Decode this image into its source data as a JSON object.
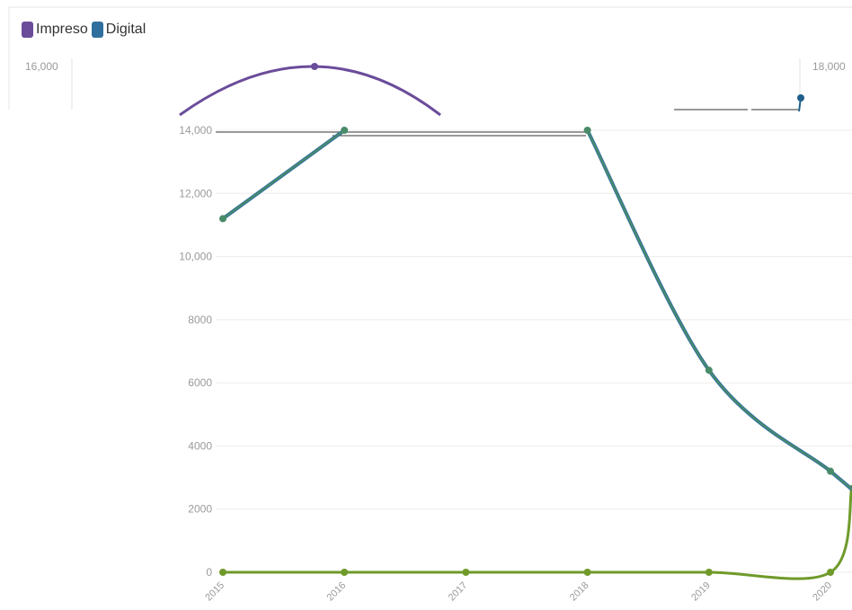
{
  "legend": {
    "items": [
      {
        "label": "Impreso",
        "color": "#6b4c9a"
      },
      {
        "label": "Digital",
        "color": "#2e6f9e"
      }
    ]
  },
  "chart_data": [
    {
      "type": "line",
      "title": "",
      "x": [
        "2015",
        "2016",
        "2017",
        "2018",
        "2019",
        "2020"
      ],
      "series": [
        {
          "name": "Impreso",
          "color": "#6b4c9a",
          "values": [
            null,
            16000,
            null,
            null,
            null,
            null
          ]
        },
        {
          "name": "Digital",
          "color": "#1f5f8b",
          "values": [
            null,
            null,
            null,
            null,
            null,
            17500
          ]
        }
      ],
      "y_left_ticks": [
        "16,000"
      ],
      "y_right_ticks": [
        "18,000"
      ],
      "note": ""
    },
    {
      "type": "line",
      "title": "",
      "x": [
        "2015",
        "2016",
        "2017",
        "2018",
        "2019",
        "2020"
      ],
      "ylim": [
        0,
        14000
      ],
      "y_ticks": [
        "0",
        "2000",
        "4000",
        "6000",
        "8000",
        "10,000",
        "12,000",
        "14,000"
      ],
      "series": [
        {
          "color": "#4a8c6a",
          "values": [
            11200,
            14000,
            null,
            14000,
            6400,
            3200
          ]
        },
        {
          "color": "#6f9a2a",
          "values": [
            0,
            0,
            0,
            0,
            0,
            0
          ]
        }
      ],
      "grid": true
    }
  ]
}
